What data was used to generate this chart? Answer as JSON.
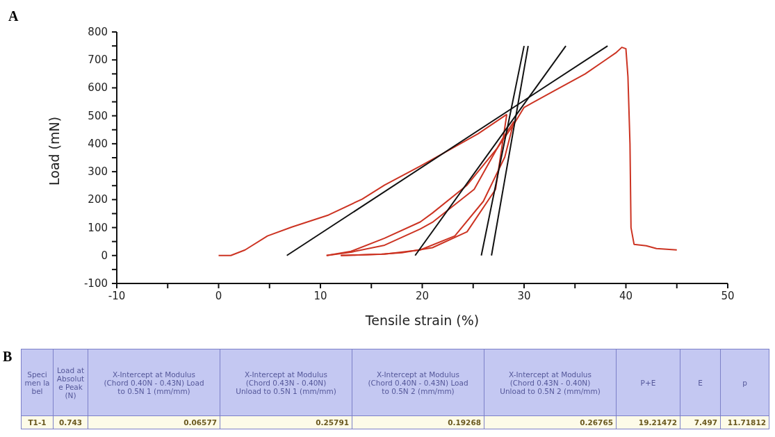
{
  "chart_data": [
    {
      "type": "line",
      "title": "A",
      "xlabel": "Tensile strain (%)",
      "ylabel": "Load (mN)",
      "xlim": [
        -10,
        50
      ],
      "ylim": [
        -100,
        800
      ],
      "xticks": [
        -10,
        {
          "value": -5,
          "label": null
        },
        0,
        {
          "value": 5,
          "label": null
        },
        10,
        {
          "value": 15,
          "label": null
        },
        20,
        {
          "value": 25,
          "label": null
        },
        30,
        {
          "value": 35,
          "label": null
        },
        40,
        {
          "value": 45,
          "label": null
        },
        50
      ],
      "yticks": [
        -100,
        {
          "value": -50,
          "label": null
        },
        0,
        {
          "value": 50,
          "label": null
        },
        100,
        {
          "value": 150,
          "label": null
        },
        200,
        {
          "value": 250,
          "label": null
        },
        300,
        {
          "value": 350,
          "label": null
        },
        400,
        {
          "value": 450,
          "label": null
        },
        500,
        {
          "value": 550,
          "label": null
        },
        600,
        {
          "value": 650,
          "label": null
        },
        700,
        {
          "value": 750,
          "label": null
        },
        800
      ],
      "marker": "none",
      "series": [
        {
          "color": "#cc3322",
          "x": [
            0,
            1.2,
            2.6,
            4.8,
            7.2,
            10.8,
            14.1,
            16.3,
            19.8,
            21,
            25.5,
            28.3
          ],
          "values": [
            0,
            0,
            20,
            70,
            102,
            145,
            202,
            252,
            320,
            344,
            436,
            505
          ]
        },
        {
          "color": "#cc3322",
          "x": [
            12,
            16,
            18,
            21,
            24.4,
            27.2,
            28.3
          ],
          "values": [
            0,
            5,
            10,
            28,
            85,
            237,
            505
          ]
        },
        {
          "color": "#cc3322",
          "x": [
            10.6,
            13,
            16.3,
            19.8,
            21,
            25.1,
            27.9,
            29
          ],
          "values": [
            0,
            12,
            37,
            95,
            119,
            237,
            419,
            480
          ]
        },
        {
          "color": "#cc3322",
          "x": [
            12,
            16.3,
            19.8,
            23.2,
            26,
            28.1,
            29
          ],
          "values": [
            0,
            5,
            20,
            70,
            194,
            352,
            480
          ]
        },
        {
          "color": "#cc3322",
          "x": [
            10.6,
            13,
            16.3,
            19.8,
            21,
            24.4,
            27.4,
            29,
            30,
            33,
            36,
            38,
            39,
            39.6,
            40,
            40.2,
            40.4,
            40.5,
            40.8,
            42,
            43,
            45
          ],
          "values": [
            0,
            15,
            62,
            120,
            152,
            252,
            386,
            470,
            530,
            590,
            650,
            700,
            725,
            745,
            740,
            640,
            400,
            100,
            40,
            35,
            25,
            20
          ]
        },
        {
          "color": "#111111",
          "x": [
            6.7,
            38.2
          ],
          "values": [
            0,
            750
          ]
        },
        {
          "color": "#111111",
          "x": [
            19.3,
            34.1
          ],
          "values": [
            0,
            750
          ]
        },
        {
          "color": "#111111",
          "x": [
            25.8,
            30
          ],
          "values": [
            0,
            750
          ]
        },
        {
          "color": "#111111",
          "x": [
            26.8,
            30.4
          ],
          "values": [
            0,
            750
          ]
        }
      ]
    },
    {
      "type": "other",
      "title": "B",
      "annotations": [
        "Specimen label",
        "Load at Absolute Peak (N)",
        "X-Intercept at Modulus (Chord 0.40N - 0.43N) Load to 0.5N 1 (mm/mm)",
        "X-Intercept at Modulus (Chord 0.43N - 0.40N) Unload to 0.5N 1 (mm/mm)",
        "X-Intercept at Modulus (Chord 0.40N - 0.43N) Load to 0.5N 2 (mm/mm)",
        "X-Intercept at Modulus (Chord 0.43N - 0.40N) Unload to 0.5N 2 (mm/mm)",
        "P+E",
        "E",
        "p",
        "T1-1",
        "0.743",
        "0.06577",
        "0.25791",
        "0.19268",
        "0.26765",
        "19.21472",
        "7.497",
        "11.71812"
      ]
    }
  ]
}
